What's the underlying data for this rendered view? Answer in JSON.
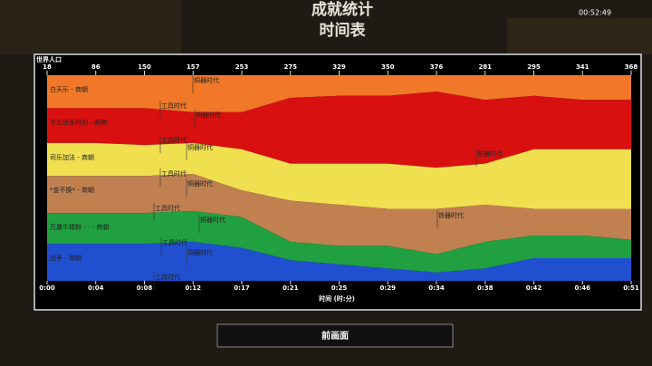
{
  "header": {
    "title": "成就统计",
    "subtitle": "时间表"
  },
  "clock": "00:52:49",
  "timeline": {
    "label": "世界人口",
    "population": [
      18,
      86,
      150,
      157,
      253,
      275,
      329,
      350,
      376,
      281,
      295,
      341,
      368
    ],
    "times": [
      "0:00",
      "0:04",
      "0:08",
      "0:12",
      "0:17",
      "0:21",
      "0:25",
      "0:29",
      "0:34",
      "0:38",
      "0:42",
      "0:46",
      "0:51"
    ],
    "xlabel": "时间 (时:分)",
    "ylim": [
      0,
      100
    ],
    "players": [
      {
        "name": "白天乐 - 商朝",
        "color": "#f07828",
        "values": [
          16,
          16,
          16,
          18,
          18,
          11,
          10,
          10,
          8,
          12,
          10,
          12,
          12
        ],
        "ages": [
          "工具时代",
          "铜器时代"
        ]
      },
      {
        "name": "不正经多时刻 - 商朝",
        "color": "#d81010",
        "values": [
          17,
          17,
          18,
          15,
          18,
          32,
          33,
          33,
          37,
          31,
          26,
          24,
          24
        ],
        "ages": [
          "工具时代",
          "铜器时代",
          "铁器时代"
        ]
      },
      {
        "name": "司乐加法 - 商朝",
        "color": "#f0e050",
        "values": [
          16,
          16,
          15,
          15,
          20,
          18,
          20,
          22,
          20,
          20,
          29,
          29,
          29
        ],
        "ages": [
          "工具时代",
          "铜器时代"
        ]
      },
      {
        "name": "*金不换* - 商朝",
        "color": "#c08050",
        "values": [
          18,
          18,
          18,
          18,
          13,
          20,
          20,
          18,
          22,
          18,
          13,
          13,
          15
        ],
        "ages": [
          "工具时代",
          "铜器时代",
          "铁器时代"
        ]
      },
      {
        "name": "万屠牛精粉 - - - 商朝",
        "color": "#20a040",
        "values": [
          15,
          15,
          15,
          15,
          15,
          9,
          9,
          11,
          9,
          13,
          11,
          11,
          9
        ],
        "ages": [
          "工具时代",
          "铜器时代"
        ]
      },
      {
        "name": "战争 - 商朝",
        "color": "#2050d0",
        "values": [
          18,
          18,
          18,
          19,
          16,
          10,
          9,
          6,
          4,
          6,
          11,
          11,
          11
        ],
        "ages": [
          "工具时代",
          "铜器时代"
        ]
      }
    ]
  },
  "button": "前画面"
}
